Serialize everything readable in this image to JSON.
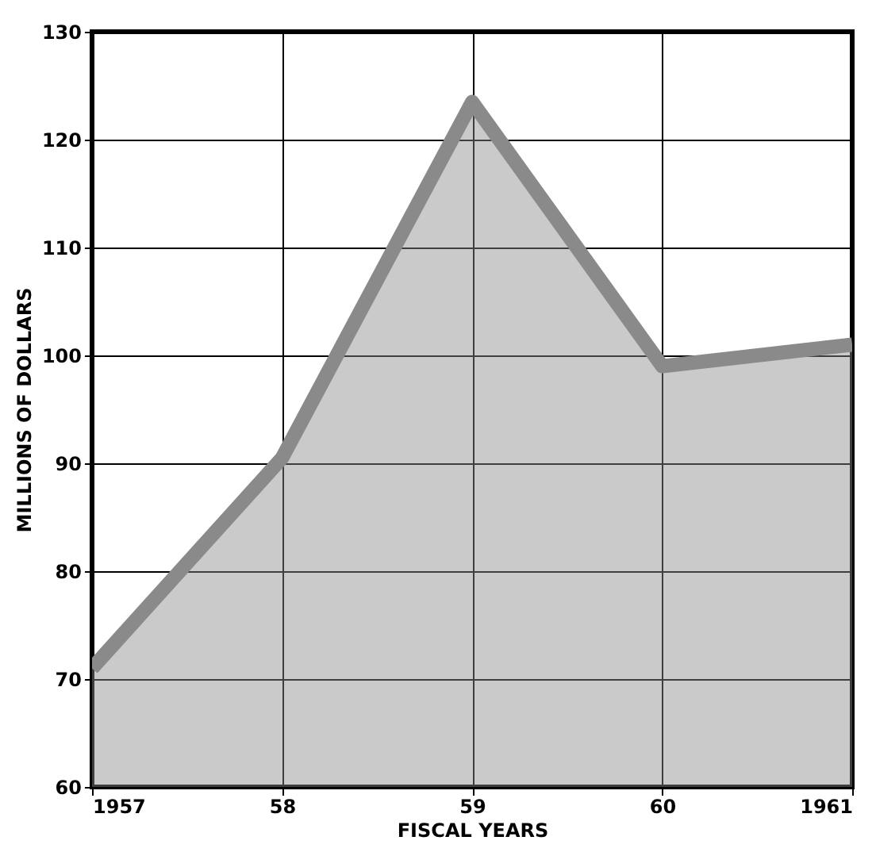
{
  "chart_data": {
    "type": "area",
    "xlabel": "FISCAL YEARS",
    "ylabel": "MILLIONS OF DOLLARS",
    "x": [
      1957,
      1958,
      1959,
      1960,
      1961
    ],
    "series": [
      {
        "color": "#8a8a8a",
        "values": [
          71,
          90.5,
          123.5,
          99,
          101
        ]
      }
    ],
    "xlim": [
      1957,
      1961
    ],
    "ylim": [
      60,
      130
    ],
    "xticks": [
      1957,
      {
        "value": 1958,
        "label": "58"
      },
      {
        "value": 1959,
        "label": "59"
      },
      {
        "value": 1960,
        "label": "60"
      },
      1961
    ],
    "yticks": [
      60,
      70,
      80,
      90,
      100,
      110,
      120,
      130
    ],
    "grid": true
  }
}
